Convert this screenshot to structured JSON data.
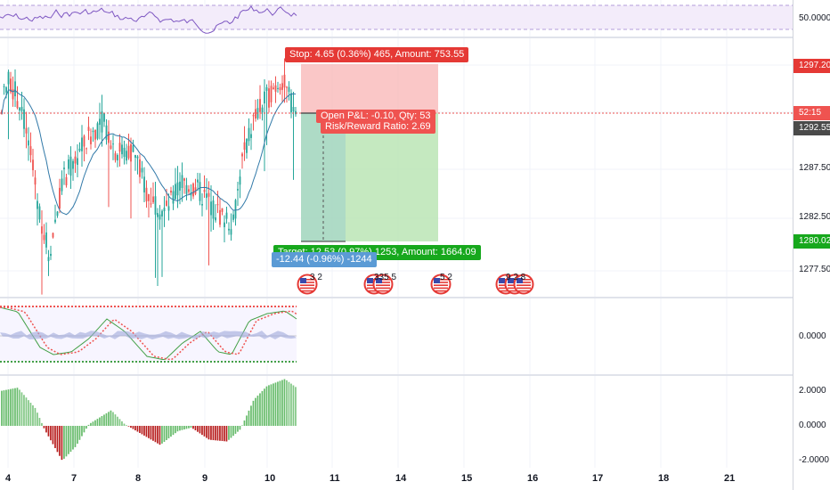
{
  "colors": {
    "up": "#26a69a",
    "down": "#ef5350",
    "ma": "#2962ff",
    "stop_fill": "#f8b4b4",
    "target_fill": "#b7e3b0",
    "stop_tag": "#e53935",
    "target_tag": "#17a81d",
    "label_blue": "#5b9bd5",
    "price_tag_dark": "#4a4a4a"
  },
  "rsi_pane": {
    "level_label": "50.0000"
  },
  "main_pane": {
    "price_axis": [
      "1297.20",
      "1292.55",
      "1287.50",
      "1282.50",
      "1280.02",
      "1277.50"
    ],
    "countdown": "52:15",
    "current_price": "1292.55",
    "stop_price_tag": "1297.20",
    "target_price_tag": "1280.02",
    "ticks_grid": [
      "1287.50",
      "1282.50",
      "1277.50"
    ]
  },
  "position": {
    "stop_label": "Stop: 4.65 (0.36%) 465, Amount: 753.55",
    "open_pl_label": "Open P&L: -0.10, Qty: 53",
    "rr_label": "Risk/Reward Ratio: 2.69",
    "target_label": "Target: 12.53 (0.97%) 1253, Amount: 1664.09",
    "measure_label": "-12.44 (-0.96%) -1244"
  },
  "events": [
    {
      "icon": "us-flag-icon",
      "number": "3 2"
    },
    {
      "icon": "us-flag-icon",
      "number": "335 5"
    },
    {
      "icon": "us-flag-icon",
      "number": "5 2"
    },
    {
      "icon": "us-flag-icon",
      "number": "9 2 8"
    }
  ],
  "stoch_pane": {
    "level_label": "0.0000"
  },
  "ao_pane": {
    "levels": [
      "2.0000",
      "0.0000",
      "-2.0000"
    ]
  },
  "time_axis": [
    "4",
    "7",
    "8",
    "9",
    "10",
    "11",
    "14",
    "15",
    "16",
    "17",
    "18",
    "21"
  ]
}
